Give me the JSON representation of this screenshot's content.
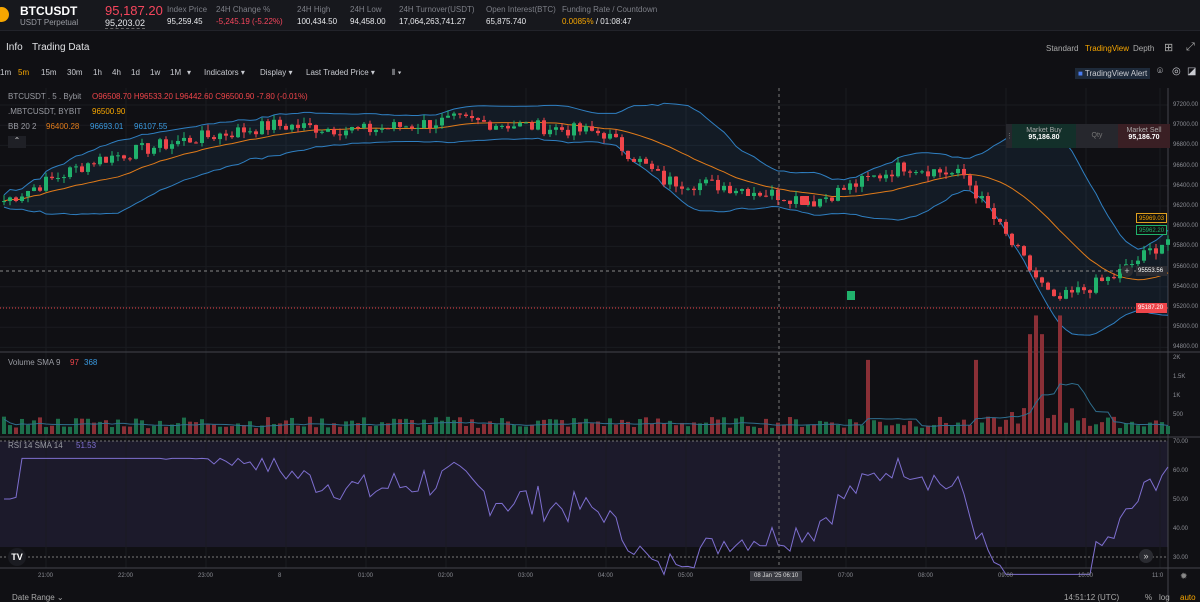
{
  "header": {
    "symbol": "BTCUSDT",
    "contract": "USDT Perpetual",
    "last_price": "95,187.20",
    "mark_price": "95,203.02",
    "stats": [
      {
        "label": "Index Price",
        "value": "95,259.45"
      },
      {
        "label": "24H Change %",
        "value": "-5,245.19 (-5.22%)"
      },
      {
        "label": "24H High",
        "value": "100,434.50"
      },
      {
        "label": "24H Low",
        "value": "94,458.00"
      },
      {
        "label": "24H Turnover(USDT)",
        "value": "17,064,263,741.27"
      },
      {
        "label": "Open Interest(BTC)",
        "value": "65,875.740"
      },
      {
        "label": "Funding Rate / Countdown",
        "value": "0.0085%",
        "countdown": "/ 01:08:47"
      }
    ]
  },
  "tabs": [
    "Info",
    "Trading Data"
  ],
  "views": [
    "Standard",
    "TradingView",
    "Depth"
  ],
  "toolbar": {
    "intervals": [
      "1m",
      "5m",
      "15m",
      "30m",
      "1h",
      "4h",
      "1d",
      "1w",
      "1M"
    ],
    "active": "5m",
    "indicators": "Indicators",
    "display": "Display",
    "price_type": "Last Traded Price",
    "alert": "TradingView Alert"
  },
  "legend": {
    "title": "BTCUSDT . 5 . Bybit",
    "ohlc": "O96508.70 H96533.20 L96442.60 C96500.90 -7.80 (-0.01%)",
    "mark_name": ".MBTCUSDT, BYBIT",
    "mark_val": "96500.90",
    "bb": "BB 20 2",
    "bb_mid": "96400.28",
    "bb_up": "96693.01",
    "bb_lo": "96107.55"
  },
  "order": {
    "buy_label": "Market Buy",
    "buy_price": "95,186.80",
    "qty": "Qty",
    "sell_label": "Market Sell",
    "sell_price": "95,186.70"
  },
  "price_axis": [
    "97200.00",
    "97000.00",
    "96800.00",
    "96600.00",
    "96400.00",
    "96200.00",
    "96000.00",
    "95800.00",
    "95600.00",
    "95400.00",
    "95200.00",
    "95000.00",
    "94800.00"
  ],
  "price_tags": {
    "bb_up": "95969.03",
    "last_green": "95962.20",
    "crosshair": "95553.56",
    "last": "95187.20"
  },
  "volume": {
    "label": "Volume SMA 9",
    "v1": "97",
    "v2": "368",
    "axis": [
      "2K",
      "1.5K",
      "1K",
      "500"
    ]
  },
  "rsi": {
    "label": "RSI 14 SMA 14",
    "val": "51.53",
    "axis": [
      "70.00",
      "60.00",
      "50.00",
      "40.00",
      "30.00"
    ]
  },
  "time_axis": [
    "21:00",
    "22:00",
    "23:00",
    "8",
    "01:00",
    "02:00",
    "03:00",
    "04:00",
    "05:00",
    "07:00",
    "08:00",
    "09:00",
    "10:00",
    "11:0"
  ],
  "crosshair_time": "08 Jan '25   06:10",
  "footer": {
    "date_range": "Date Range",
    "clock": "14:51:12 (UTC)",
    "pct": "%",
    "log": "log",
    "auto": "auto"
  },
  "colors": {
    "up": "#20b26c",
    "down": "#ef454a",
    "accent": "#f7a600",
    "bb": "#2f7fc1",
    "mid": "#e07b1a",
    "rsi": "#7e6fd0"
  },
  "price_path": [
    [
      0,
      96250
    ],
    [
      15,
      96650
    ],
    [
      30,
      96850
    ],
    [
      45,
      97000
    ],
    [
      60,
      96950
    ],
    [
      75,
      97050
    ],
    [
      90,
      96980
    ],
    [
      100,
      96920
    ],
    [
      110,
      96450
    ],
    [
      120,
      96400
    ],
    [
      135,
      96250
    ],
    [
      150,
      96600
    ],
    [
      160,
      96500
    ],
    [
      167,
      95900
    ],
    [
      175,
      95250
    ],
    [
      185,
      95500
    ],
    [
      197,
      96000
    ],
    [
      205,
      95900
    ],
    [
      215,
      95750
    ],
    [
      225,
      95900
    ],
    [
      232,
      95500
    ],
    [
      245,
      95920
    ]
  ],
  "candle_count": 195
}
